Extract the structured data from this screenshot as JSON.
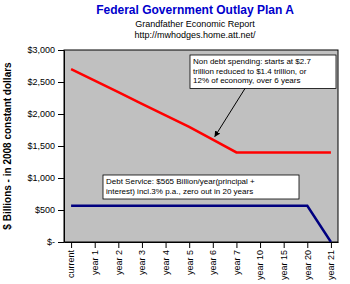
{
  "chart_data": {
    "type": "line",
    "title": "Federal Government Outlay Plan A",
    "subtitle": [
      "Grandfather Economic Report",
      "http://mwhodges.home.att.net/"
    ],
    "y_label": "$ Billions - in 2008 constant dollars",
    "categories": [
      "current",
      "year 1",
      "year 2",
      "year 3",
      "year 4",
      "year 5",
      "year 6",
      "year 7",
      "year 10",
      "year 15",
      "year 20",
      "year 21"
    ],
    "series": [
      {
        "color": "#ff0000",
        "values": [
          2700,
          2520,
          2340,
          2160,
          1980,
          1800,
          1600,
          1400,
          1400,
          1400,
          1400,
          1400
        ]
      },
      {
        "color": "#000080",
        "values": [
          565,
          565,
          565,
          565,
          565,
          565,
          565,
          565,
          565,
          565,
          565,
          0
        ]
      }
    ],
    "ylim": [
      0,
      3000
    ],
    "yticks": [
      {
        "value": 0,
        "label": "$-"
      },
      {
        "value": 500,
        "label": "$500"
      },
      {
        "value": 1000,
        "label": "$1,000"
      },
      {
        "value": 1500,
        "label": "$1,500"
      },
      {
        "value": 2000,
        "label": "$2,000"
      },
      {
        "value": 2500,
        "label": "$2,500"
      },
      {
        "value": 3000,
        "label": "$3,000"
      }
    ],
    "grid": false,
    "annotations": [
      {
        "lines": [
          "Non debt spending: starts at $2.7",
          "trillion reduced to $1.4 trillion, or",
          "12% of economy, over 6 years"
        ]
      },
      {
        "lines": [
          "Debt Service: $565 Billion/year(principal +",
          "interest) incl.3% p.a., zero out in 20 years"
        ]
      }
    ]
  }
}
